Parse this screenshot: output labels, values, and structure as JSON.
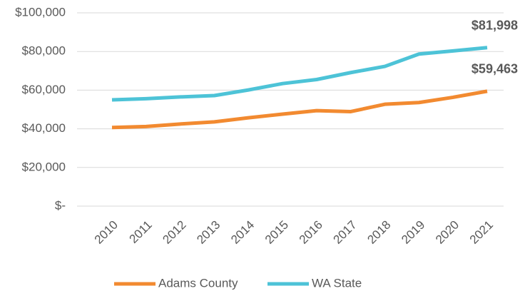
{
  "chart_data": {
    "type": "line",
    "categories": [
      "2010",
      "2011",
      "2012",
      "2013",
      "2014",
      "2015",
      "2016",
      "2017",
      "2018",
      "2019",
      "2020",
      "2021"
    ],
    "series": [
      {
        "name": "Adams County",
        "color": "#f28a30",
        "values": [
          40700,
          41200,
          42500,
          43600,
          45700,
          47600,
          49400,
          48900,
          52700,
          53600,
          56300,
          59463
        ],
        "value_labels": [
          null,
          null,
          null,
          null,
          null,
          null,
          null,
          null,
          null,
          null,
          null,
          "$59,463"
        ]
      },
      {
        "name": "WA State",
        "color": "#4dc3d7",
        "values": [
          55000,
          55600,
          56500,
          57200,
          60100,
          63400,
          65500,
          69100,
          72300,
          78700,
          80300,
          81998
        ],
        "value_labels": [
          null,
          null,
          null,
          null,
          null,
          null,
          null,
          null,
          null,
          null,
          null,
          "$81,998"
        ]
      }
    ],
    "ylim": [
      0,
      100000
    ],
    "yticks": [
      {
        "value": 0,
        "label": "$-"
      },
      {
        "value": 20000,
        "label": "$20,000"
      },
      {
        "value": 40000,
        "label": "$40,000"
      },
      {
        "value": 60000,
        "label": "$60,000"
      },
      {
        "value": 80000,
        "label": "$80,000"
      },
      {
        "value": 100000,
        "label": "$100,000"
      }
    ],
    "grid": true,
    "legend": "bottom"
  }
}
